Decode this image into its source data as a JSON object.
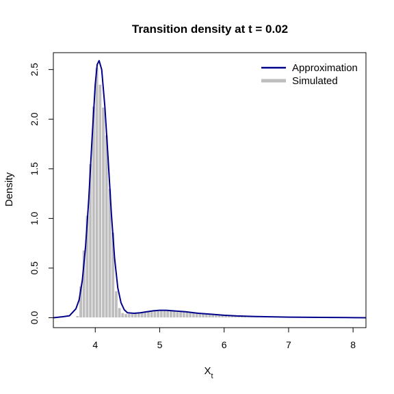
{
  "chart_data": {
    "type": "bar",
    "title": "Transition density at t = 0.02",
    "xlabel_main": "X",
    "xlabel_sub": "t",
    "ylabel": "Density",
    "xlim": [
      3.35,
      8.2
    ],
    "ylim": [
      -0.1,
      2.67
    ],
    "x_ticks": [
      4,
      5,
      6,
      7,
      8
    ],
    "y_ticks": [
      0.0,
      0.5,
      1.0,
      1.5,
      2.0,
      2.5
    ],
    "x_tick_labels": [
      "4",
      "5",
      "6",
      "7",
      "8"
    ],
    "y_tick_labels": [
      "0.0",
      "0.5",
      "1.0",
      "1.5",
      "2.0",
      "2.5"
    ],
    "grid": false,
    "legend_position": "top-right",
    "series": [
      {
        "name": "Approximation",
        "kind": "line",
        "color": "#00008B",
        "x": [
          3.35,
          3.5,
          3.6,
          3.7,
          3.75,
          3.8,
          3.85,
          3.9,
          3.95,
          4.0,
          4.03,
          4.06,
          4.1,
          4.15,
          4.2,
          4.25,
          4.3,
          4.35,
          4.4,
          4.45,
          4.5,
          4.6,
          4.7,
          4.8,
          4.9,
          5.0,
          5.1,
          5.2,
          5.4,
          5.6,
          5.8,
          6.0,
          6.2,
          6.5,
          7.0,
          7.5,
          8.0,
          8.2
        ],
        "y": [
          0.0,
          0.01,
          0.02,
          0.09,
          0.18,
          0.38,
          0.72,
          1.2,
          1.8,
          2.35,
          2.55,
          2.59,
          2.5,
          2.12,
          1.6,
          1.05,
          0.6,
          0.3,
          0.15,
          0.08,
          0.05,
          0.045,
          0.05,
          0.06,
          0.07,
          0.075,
          0.075,
          0.07,
          0.06,
          0.045,
          0.035,
          0.025,
          0.018,
          0.012,
          0.006,
          0.003,
          0.001,
          0.0
        ]
      },
      {
        "name": "Simulated",
        "kind": "histogram",
        "color": "#BEBEBE",
        "bin_width": 0.05,
        "bin_starts": [
          3.7,
          3.75,
          3.8,
          3.85,
          3.9,
          3.95,
          4.0,
          4.05,
          4.1,
          4.15,
          4.2,
          4.25,
          4.3,
          4.35,
          4.4,
          4.45,
          4.5,
          4.55,
          4.6,
          4.65,
          4.7,
          4.75,
          4.8,
          4.85,
          4.9,
          4.95,
          5.0,
          5.05,
          5.1,
          5.15,
          5.2,
          5.25,
          5.3,
          5.35,
          5.4,
          5.45,
          5.5,
          5.55,
          5.6,
          5.65,
          5.7,
          5.75,
          5.8,
          5.85,
          5.9,
          5.95,
          6.0,
          6.05,
          6.1,
          6.15,
          6.2,
          6.25,
          6.3,
          6.35,
          6.4,
          6.45,
          6.5
        ],
        "values": [
          0.02,
          0.32,
          0.68,
          1.03,
          1.55,
          2.13,
          2.52,
          2.35,
          2.12,
          1.84,
          1.3,
          0.86,
          0.27,
          0.1,
          0.05,
          0.04,
          0.04,
          0.04,
          0.05,
          0.05,
          0.06,
          0.06,
          0.07,
          0.07,
          0.07,
          0.07,
          0.08,
          0.08,
          0.07,
          0.07,
          0.07,
          0.06,
          0.06,
          0.06,
          0.06,
          0.05,
          0.05,
          0.05,
          0.04,
          0.04,
          0.04,
          0.04,
          0.03,
          0.03,
          0.03,
          0.03,
          0.03,
          0.02,
          0.02,
          0.02,
          0.02,
          0.02,
          0.02,
          0.01,
          0.01,
          0.01,
          0.01
        ]
      }
    ]
  }
}
